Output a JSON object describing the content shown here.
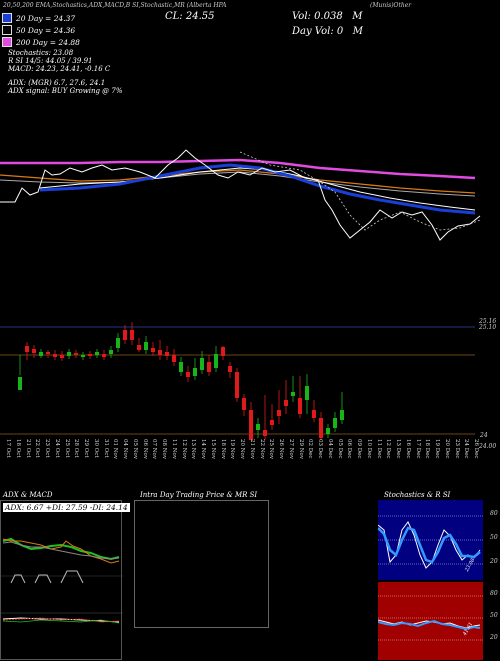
{
  "header": {
    "symbol_line": "(Munis)Other",
    "top_text": "20,50,200 EMA,Stochastics,ADX,MACD,B     SI,Stochastic,MR     (Alberta HPA",
    "cl_label": "CL: 24.55",
    "vol_label": "Vol: 0.038",
    "vol_unit": "M",
    "day_vol_label": "Day Vol: 0",
    "day_vol_unit": "M"
  },
  "legend": [
    {
      "label": "20 Day = 24.37",
      "color": "#1a3fd6"
    },
    {
      "label": "50 Day = 24.36",
      "color": "#ffffff"
    },
    {
      "label": "200 Day = 24.88",
      "color": "#e04be0"
    }
  ],
  "stats": {
    "stochastics": "Stochastics: 23.08",
    "rsi_line": "R                SI 14/5: 44.05 / 39.91",
    "macd_line": "MACD: 24.23,  24.41,  -0.16  C",
    "adx_line": "ADX:                          (MGR) 6.7,  27.6,  24.1",
    "adx_signal_line": "ADX  signal:                              BUY Growing @ 7%"
  },
  "price_axis": {
    "top_labels": [
      "25.16",
      "25.10"
    ],
    "bottom_labels": [
      "24",
      "24.00"
    ]
  },
  "dates": [
    "17 Oct",
    "18 Oct",
    "21 Oct",
    "22 Oct",
    "23 Oct",
    "24 Oct",
    "25 Oct",
    "28 Oct",
    "29 Oct",
    "30 Oct",
    "31 Oct",
    "01 Nov",
    "04 Nov",
    "05 Nov",
    "06 Nov",
    "07 Nov",
    "08 Nov",
    "11 Nov",
    "12 Nov",
    "13 Nov",
    "14 Nov",
    "15 Nov",
    "18 Nov",
    "19 Nov",
    "20 Nov",
    "21 Nov",
    "22 Nov",
    "25 Nov",
    "26 Nov",
    "27 Nov",
    "29 Nov",
    "02 Dec",
    "03 Dec",
    "04 Dec",
    "05 Dec",
    "06 Dec",
    "09 Dec",
    "10 Dec",
    "11 Dec",
    "12 Dec",
    "13 Dec",
    "16 Dec",
    "17 Dec",
    "18 Dec",
    "19 Dec",
    "20 Dec",
    "23 Dec",
    "24 Dec",
    "26 Dec"
  ],
  "panels": {
    "adx_title": "ADX  & MACD",
    "adx_values": "ADX: 6.67  +DI: 27.59  -DI: 24.14",
    "intraday_title": "Intra  Day Trading Price  & MR                SI",
    "stoch_title": "Stochastics & R                SI",
    "stoch_axis": [
      "80",
      "50",
      "20"
    ],
    "rsi_axis": [
      "80",
      "50",
      "20"
    ],
    "stoch_value": "23.08",
    "rsi_value": "41.61"
  },
  "colors": {
    "ema20": "#1a3fd6",
    "ema50": "#ffffff",
    "ema200": "#e04be0",
    "orange": "#d97a10",
    "up": "#19b419",
    "down": "#e01a1a",
    "stoch_bg": "#000080",
    "rsi_bg": "#a00000"
  }
}
